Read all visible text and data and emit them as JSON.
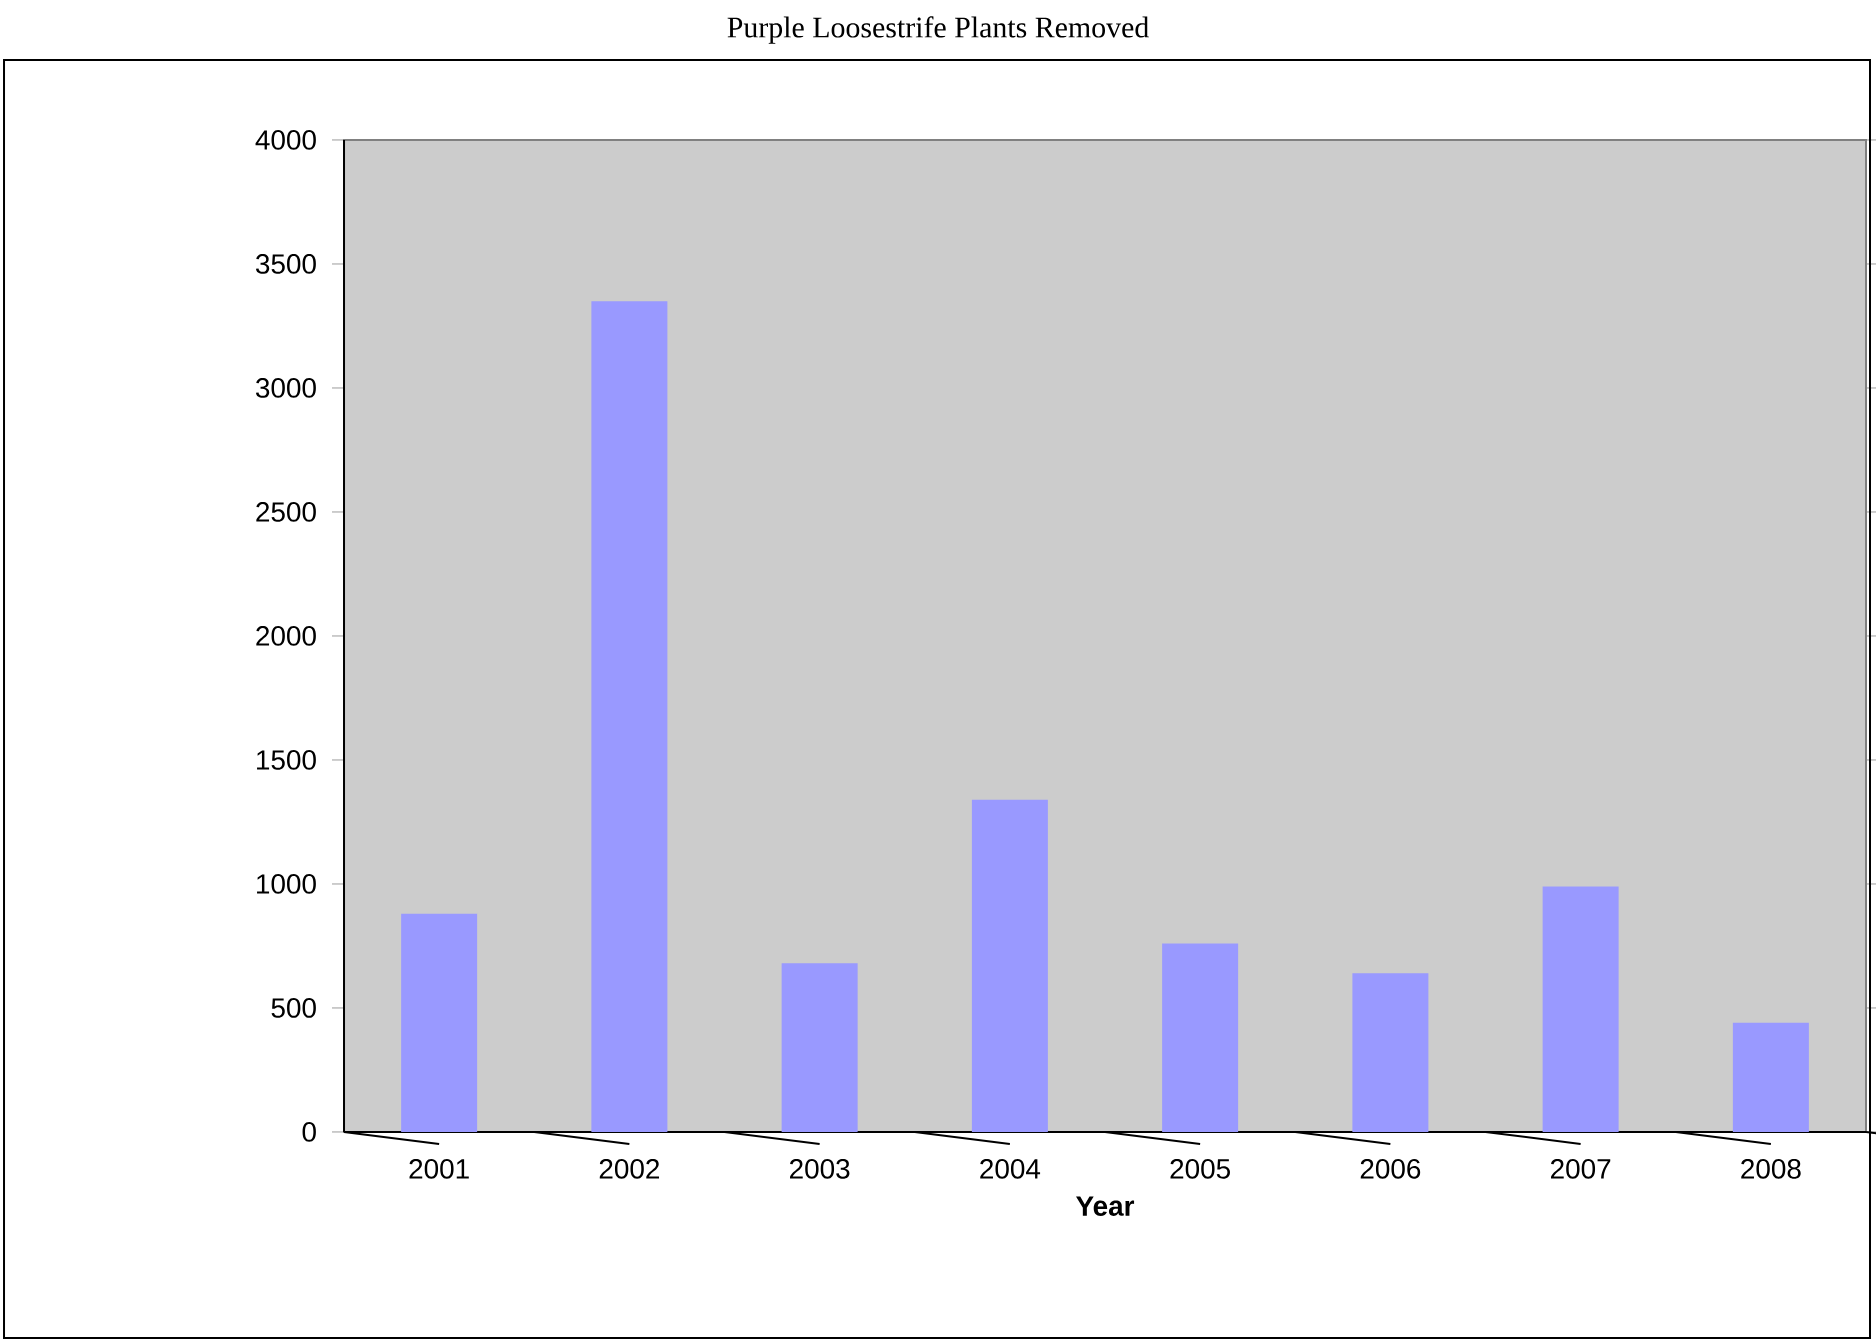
{
  "chart_data": {
    "type": "bar",
    "title": "Purple Loosestrife Plants Removed",
    "xlabel": "Year",
    "categories": [
      "2001",
      "2002",
      "2003",
      "2004",
      "2005",
      "2006",
      "2007",
      "2008"
    ],
    "values": [
      880,
      3350,
      680,
      1340,
      760,
      640,
      990,
      440
    ],
    "color": "#9999ff",
    "ylim": [
      0,
      4000
    ],
    "yticks": [
      0,
      500,
      1000,
      1500,
      2000,
      2500,
      3000,
      3500,
      4000
    ]
  }
}
